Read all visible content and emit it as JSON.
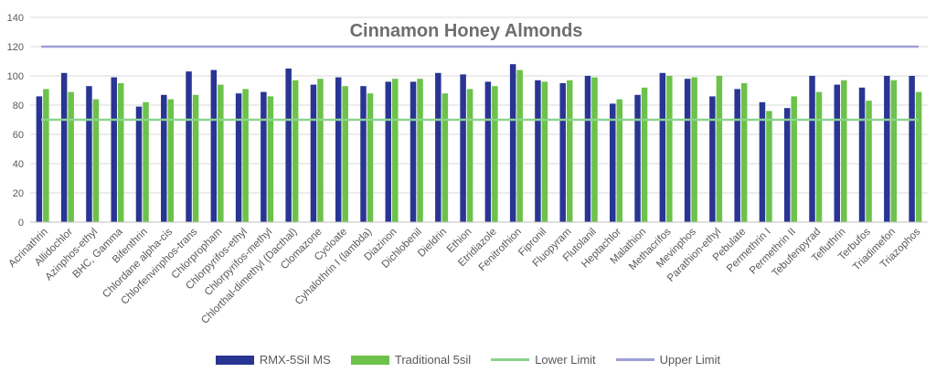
{
  "colors": {
    "rmx": "#283593",
    "traditional": "#6cc24a",
    "lower": "#8bd48f",
    "upper": "#9d9fd6",
    "gridline": "#d9d9d9",
    "axis_text": "#595959"
  },
  "chart_data": {
    "type": "bar",
    "title": "Cinnamon Honey Almonds",
    "xlabel": "",
    "ylabel": "",
    "ylim": [
      0,
      140
    ],
    "yticks": [
      0,
      20,
      40,
      60,
      80,
      100,
      120,
      140
    ],
    "grid": "horizontal",
    "legend_position": "bottom",
    "categories": [
      "Acrinathrin",
      "Allidochlor",
      "Azinphos-ethyl",
      "BHC, Gamma",
      "Bifenthrin",
      "Chlordane alpha-cis",
      "Chlorfenvinphos-trans",
      "Chlorpropham",
      "Chlorpyrifos-ethyl",
      "Chlorpyrifos-methyl",
      "Chlorthal-dimethyl (Dacthal)",
      "Clomazone",
      "Cycloate",
      "Cyhalothrin I (lambda)",
      "Diazinon",
      "Dichlobenil",
      "Dieldrin",
      "Ethion",
      "Etridiazole",
      "Fenitrothion",
      "Fipronil",
      "Fluopyram",
      "Flutolanil",
      "Heptachlor",
      "Malathion",
      "Methacrifos",
      "Mevinphos",
      "Parathion-ethyl",
      "Pebulate",
      "Permethrin I",
      "Permethrin II",
      "Tebufenpyrad",
      "Tefluthrin",
      "Terbufos",
      "Triadimefon",
      "Triazophos"
    ],
    "series": [
      {
        "name": "RMX-5Sil MS",
        "color": "#283593",
        "values": [
          86,
          102,
          93,
          99,
          79,
          87,
          103,
          104,
          88,
          89,
          105,
          94,
          99,
          93,
          96,
          96,
          102,
          101,
          96,
          108,
          97,
          95,
          100,
          81,
          87,
          102,
          98,
          86,
          91,
          82,
          78,
          100,
          94,
          92,
          100,
          100
        ]
      },
      {
        "name": "Traditional 5sil",
        "color": "#6cc24a",
        "values": [
          91,
          89,
          84,
          95,
          82,
          84,
          87,
          94,
          91,
          86,
          97,
          98,
          93,
          88,
          98,
          98,
          88,
          91,
          93,
          104,
          96,
          97,
          99,
          84,
          92,
          100,
          99,
          100,
          95,
          76,
          86,
          89,
          97,
          83,
          97,
          89
        ]
      }
    ],
    "reference_lines": [
      {
        "name": "Lower Limit",
        "value": 70,
        "color": "#8bd48f"
      },
      {
        "name": "Upper Limit",
        "value": 120,
        "color": "#9d9fd6"
      }
    ]
  },
  "legend": {
    "items": [
      {
        "label": "RMX-5Sil MS",
        "kind": "box",
        "color": "#283593"
      },
      {
        "label": "Traditional 5sil",
        "kind": "box",
        "color": "#6cc24a"
      },
      {
        "label": "Lower Limit",
        "kind": "line",
        "color": "#8bd48f"
      },
      {
        "label": "Upper Limit",
        "kind": "line",
        "color": "#9d9fd6"
      }
    ]
  }
}
